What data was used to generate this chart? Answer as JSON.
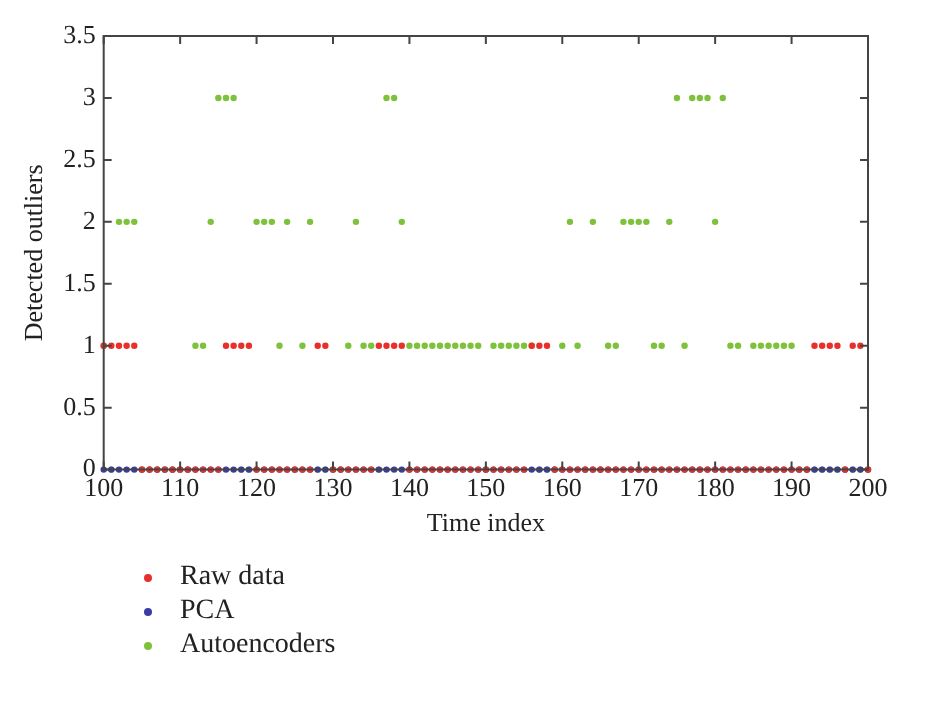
{
  "chart_data": {
    "type": "scatter",
    "xlabel": "Time index",
    "ylabel": "Detected outliers",
    "x": [
      100,
      101,
      102,
      103,
      104,
      105,
      106,
      107,
      108,
      109,
      110,
      111,
      112,
      113,
      114,
      115,
      116,
      117,
      118,
      119,
      120,
      121,
      122,
      123,
      124,
      125,
      126,
      127,
      128,
      129,
      130,
      131,
      132,
      133,
      134,
      135,
      136,
      137,
      138,
      139,
      140,
      141,
      142,
      143,
      144,
      145,
      146,
      147,
      148,
      149,
      150,
      151,
      152,
      153,
      154,
      155,
      156,
      157,
      158,
      159,
      160,
      161,
      162,
      163,
      164,
      165,
      166,
      167,
      168,
      169,
      170,
      171,
      172,
      173,
      174,
      175,
      176,
      177,
      178,
      179,
      180,
      181,
      182,
      183,
      184,
      185,
      186,
      187,
      188,
      189,
      190,
      191,
      192,
      193,
      194,
      195,
      196,
      197,
      198,
      199,
      200
    ],
    "series": [
      {
        "name": "Raw data",
        "color": "#e8302a",
        "values": [
          1,
          1,
          1,
          1,
          1,
          0,
          0,
          0,
          0,
          0,
          0,
          0,
          0,
          0,
          0,
          0,
          1,
          1,
          1,
          1,
          0,
          0,
          0,
          0,
          0,
          0,
          0,
          0,
          1,
          1,
          0,
          0,
          0,
          0,
          0,
          0,
          1,
          1,
          1,
          1,
          0,
          0,
          0,
          0,
          0,
          0,
          0,
          0,
          0,
          0,
          0,
          0,
          0,
          0,
          0,
          0,
          1,
          1,
          1,
          0,
          0,
          0,
          0,
          0,
          0,
          0,
          0,
          0,
          0,
          0,
          0,
          0,
          0,
          0,
          0,
          0,
          0,
          0,
          0,
          0,
          0,
          0,
          0,
          0,
          0,
          0,
          0,
          0,
          0,
          0,
          0,
          0,
          0,
          1,
          1,
          1,
          1,
          0,
          1,
          1,
          0
        ]
      },
      {
        "name": "PCA",
        "color": "#3a3aa8",
        "values": [
          0,
          0,
          0,
          0,
          0,
          0,
          0,
          0,
          0,
          0,
          0,
          0,
          0,
          0,
          0,
          0,
          0,
          0,
          0,
          0,
          0,
          0,
          0,
          0,
          0,
          0,
          0,
          0,
          0,
          0,
          0,
          0,
          0,
          0,
          0,
          0,
          0,
          0,
          0,
          0,
          0,
          0,
          0,
          0,
          0,
          0,
          0,
          0,
          0,
          0,
          0,
          0,
          0,
          0,
          0,
          0,
          0,
          0,
          0,
          0,
          0,
          0,
          0,
          0,
          0,
          0,
          0,
          0,
          0,
          0,
          0,
          0,
          0,
          0,
          0,
          0,
          0,
          0,
          0,
          0,
          0,
          0,
          0,
          0,
          0,
          0,
          0,
          0,
          0,
          0,
          0,
          0,
          0,
          0,
          0,
          0,
          0,
          0,
          0,
          0,
          0
        ]
      },
      {
        "name": "Autoencoders",
        "color": "#7dc23a",
        "values": [
          1,
          0,
          2,
          2,
          2,
          0,
          0,
          0,
          0,
          0,
          0,
          0,
          1,
          1,
          2,
          3,
          3,
          3,
          0,
          0,
          2,
          2,
          2,
          1,
          2,
          0,
          1,
          2,
          0,
          0,
          0,
          0,
          1,
          2,
          1,
          1,
          0,
          3,
          3,
          2,
          1,
          1,
          1,
          1,
          1,
          1,
          1,
          1,
          1,
          1,
          0,
          1,
          1,
          1,
          1,
          1,
          1,
          0,
          0,
          0,
          1,
          2,
          1,
          0,
          2,
          0,
          1,
          1,
          2,
          2,
          2,
          2,
          1,
          1,
          2,
          3,
          1,
          3,
          3,
          3,
          2,
          3,
          1,
          1,
          0,
          1,
          1,
          1,
          1,
          1,
          1,
          0,
          0,
          0,
          0,
          0,
          0,
          0,
          0,
          0,
          0
        ]
      }
    ],
    "xlim": [
      100,
      200
    ],
    "xticks": [
      100,
      110,
      120,
      130,
      140,
      150,
      160,
      170,
      180,
      190,
      200
    ],
    "ylim": [
      0,
      3.5
    ],
    "yticks": [
      0,
      0.5,
      1,
      1.5,
      2,
      2.5,
      3,
      3.5
    ],
    "marker": "circle",
    "legend": "bottom left",
    "grid": false
  }
}
